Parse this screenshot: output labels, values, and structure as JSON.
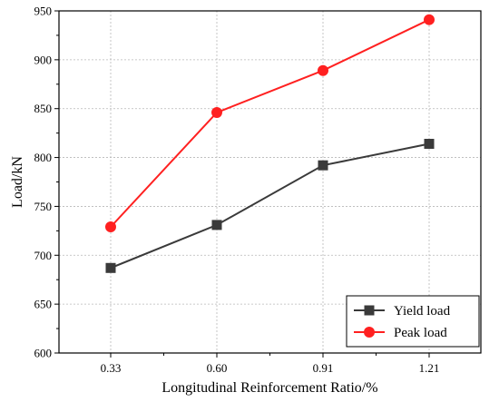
{
  "chart_data": {
    "type": "line",
    "title": "",
    "xlabel": "Longitudinal Reinforcement Ratio/%",
    "ylabel": "Load/kN",
    "categories": [
      "0.33",
      "0.60",
      "0.91",
      "1.21"
    ],
    "ylim": [
      600,
      950
    ],
    "yticks": [
      600,
      650,
      700,
      750,
      800,
      850,
      900,
      950
    ],
    "grid": true,
    "legend_position": "bottom-right",
    "series": [
      {
        "name": "Yield load",
        "values": [
          687,
          731,
          792,
          814
        ],
        "color": "#3a3a3a",
        "marker": "square"
      },
      {
        "name": "Peak load",
        "values": [
          729,
          846,
          889,
          941
        ],
        "color": "#ff2020",
        "marker": "circle"
      }
    ]
  }
}
